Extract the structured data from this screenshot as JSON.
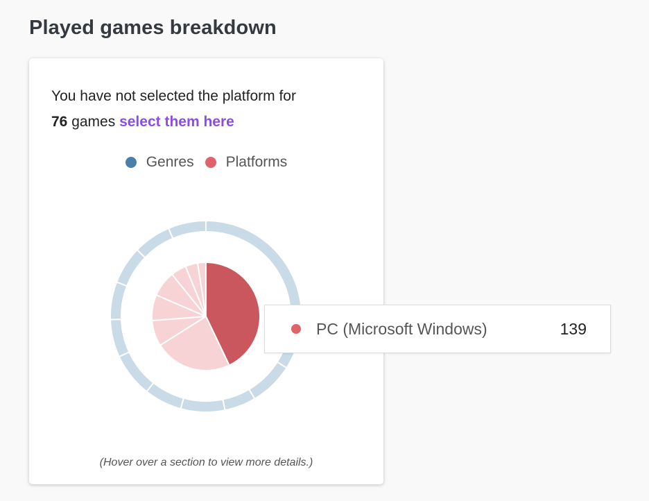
{
  "page": {
    "title": "Played games breakdown"
  },
  "notice": {
    "prefix": "You have not selected the platform for",
    "count": "76",
    "suffix": "games",
    "link_text": "select them here"
  },
  "legend": [
    {
      "label": "Genres",
      "color": "#4a7faa"
    },
    {
      "label": "Platforms",
      "color": "#e0636b"
    }
  ],
  "chart_data": {
    "type": "pie",
    "rings": [
      {
        "name": "Genres",
        "ring": "outer",
        "color": "#c9dbe7",
        "slices": [
          32,
          7,
          5,
          7,
          6,
          7,
          6,
          6,
          6,
          6,
          6
        ]
      },
      {
        "name": "Platforms",
        "ring": "inner",
        "color_highlight": "#c9575d",
        "color": "#f7d3d5",
        "highlighted_index": 0,
        "slices": [
          139,
          75,
          25,
          25,
          25,
          15,
          12,
          8
        ]
      }
    ]
  },
  "tooltip": {
    "label": "PC (Microsoft Windows)",
    "value": "139",
    "color": "#e0636b"
  },
  "hint": "(Hover over a section to view more details.)"
}
